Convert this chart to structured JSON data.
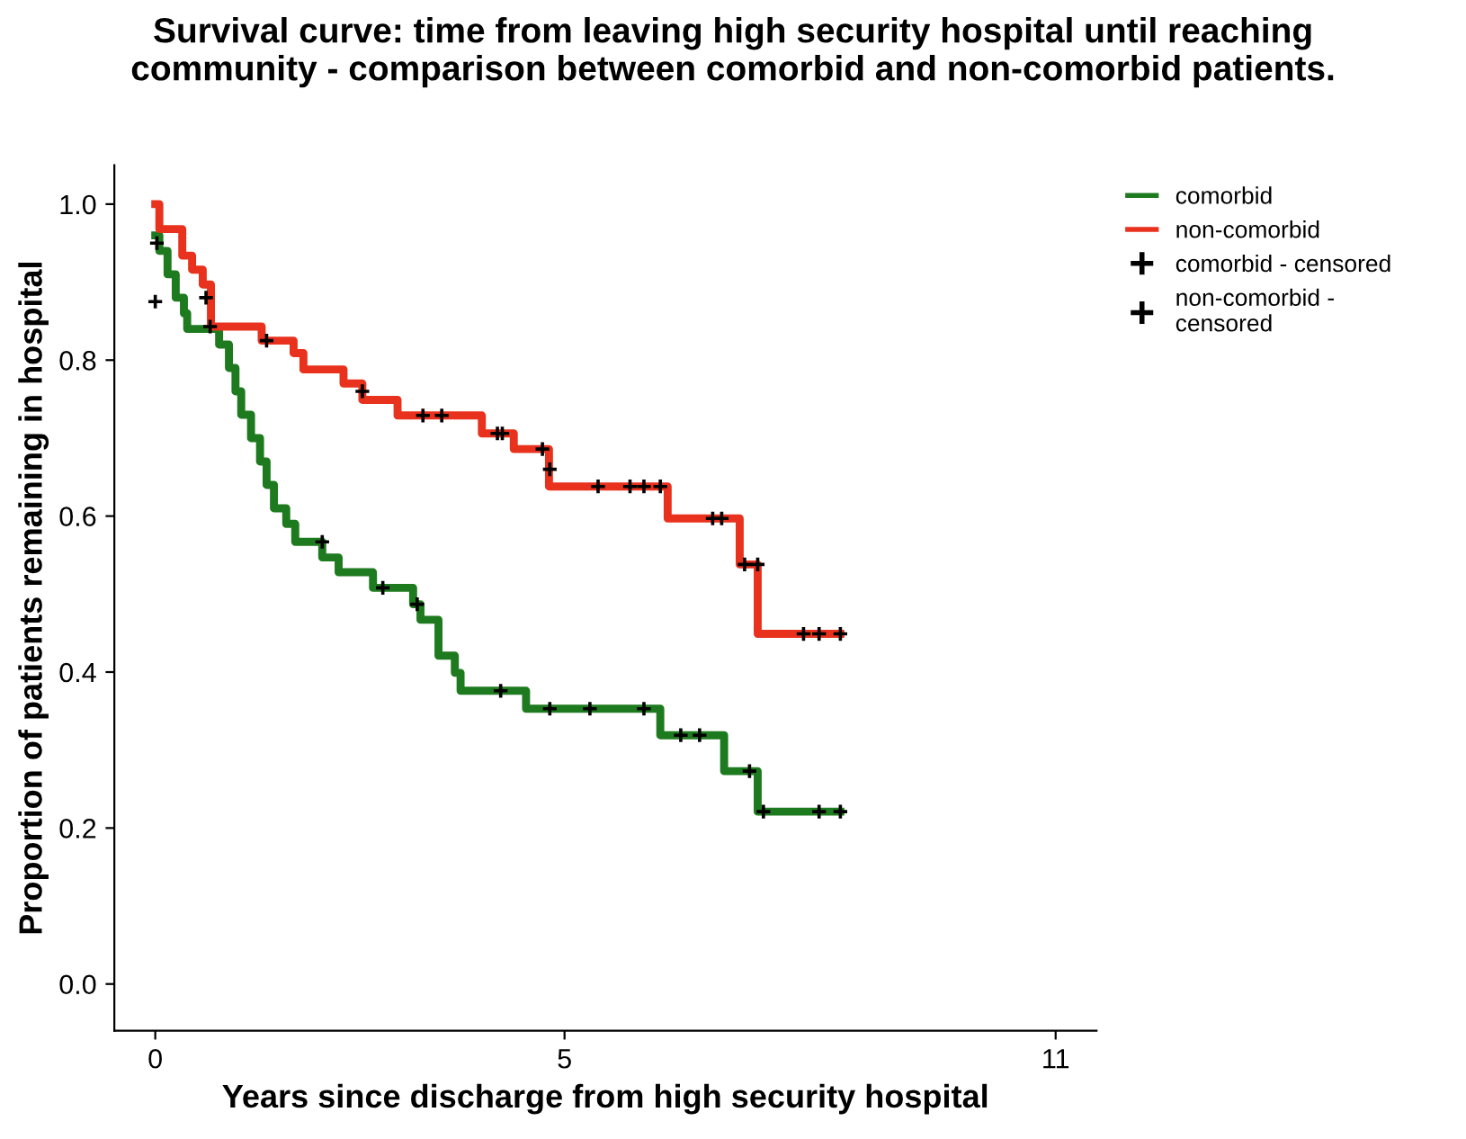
{
  "chart_data": {
    "type": "step",
    "title": "Survival curve: time from leaving high security hospital until reaching\ncommunity - comparison between comorbid and non-comorbid patients.",
    "xlabel": "Years since discharge from high security hospital",
    "ylabel": "Proportion of patients remaining in hospital",
    "xlim": [
      -0.5,
      11.5
    ],
    "xticks": [
      0,
      5,
      11
    ],
    "ylim": [
      -0.06,
      1.05
    ],
    "yticks": [
      {
        "value": 0,
        "label": "0.0"
      },
      {
        "value": 0.2,
        "label": "0.2"
      },
      {
        "value": 0.4,
        "label": "0.4"
      },
      {
        "value": 0.6,
        "label": "0.6"
      },
      {
        "value": 0.8,
        "label": "0.8"
      },
      {
        "value": 1,
        "label": "1.0"
      }
    ],
    "grid": false,
    "legend": "right",
    "series": [
      {
        "name": "comorbid",
        "color": "#1e7a1e",
        "x": [
          0,
          0.05,
          0.15,
          0.25,
          0.35,
          0.39,
          0.78,
          0.9,
          0.98,
          1.05,
          1.17,
          1.28,
          1.36,
          1.45,
          1.6,
          1.71,
          2.04,
          2.24,
          2.66,
          3.15,
          3.24,
          3.46,
          3.66,
          3.73,
          4.53,
          6.17,
          6.95,
          7.36,
          8.37
        ],
        "values": [
          0.96,
          0.94,
          0.91,
          0.88,
          0.86,
          0.84,
          0.82,
          0.79,
          0.76,
          0.73,
          0.7,
          0.67,
          0.64,
          0.61,
          0.59,
          0.567,
          0.547,
          0.528,
          0.508,
          0.487,
          0.467,
          0.421,
          0.399,
          0.376,
          0.353,
          0.319,
          0.273,
          0.221,
          0.221
        ]
      },
      {
        "name": "non-comorbid",
        "color": "#e8321e",
        "x": [
          0,
          0.05,
          0.33,
          0.45,
          0.58,
          0.68,
          1.3,
          1.69,
          1.81,
          2.3,
          2.53,
          2.96,
          3.99,
          4.38,
          4.81,
          6.26,
          7.14,
          7.36,
          8.37
        ],
        "values": [
          1.0,
          0.968,
          0.934,
          0.916,
          0.897,
          0.843,
          0.825,
          0.809,
          0.788,
          0.77,
          0.749,
          0.729,
          0.706,
          0.686,
          0.638,
          0.597,
          0.538,
          0.449,
          0.449
        ]
      },
      {
        "name": "comorbid - censored",
        "type": "scatter",
        "marker": "cross",
        "color": "#000000",
        "x": [
          0.0,
          0.02,
          2.04,
          2.78,
          3.2,
          4.22,
          4.82,
          5.31,
          5.97,
          6.42,
          6.65,
          7.26,
          7.43,
          8.11,
          8.37
        ],
        "values": [
          0.875,
          0.95,
          0.567,
          0.508,
          0.487,
          0.376,
          0.353,
          0.353,
          0.353,
          0.319,
          0.319,
          0.273,
          0.221,
          0.221,
          0.221
        ]
      },
      {
        "name": "non-comorbid -\ncensored",
        "type": "scatter",
        "marker": "cross",
        "color": "#000000",
        "x": [
          0.62,
          0.67,
          1.36,
          2.53,
          3.27,
          3.5,
          4.18,
          4.24,
          4.73,
          4.82,
          5.41,
          5.8,
          5.97,
          6.17,
          6.81,
          6.92,
          7.2,
          7.36,
          7.92,
          8.11,
          8.37
        ],
        "values": [
          0.88,
          0.843,
          0.825,
          0.76,
          0.729,
          0.729,
          0.706,
          0.706,
          0.686,
          0.66,
          0.638,
          0.638,
          0.638,
          0.638,
          0.597,
          0.597,
          0.538,
          0.538,
          0.449,
          0.449,
          0.449
        ]
      }
    ]
  }
}
